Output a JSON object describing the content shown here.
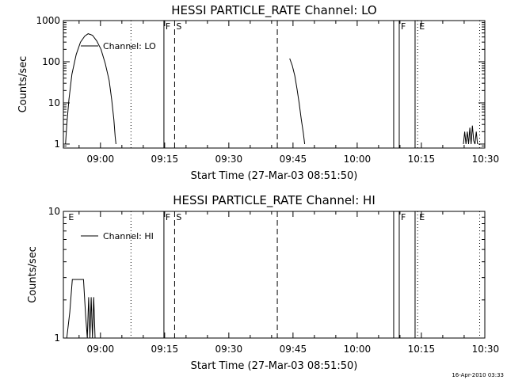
{
  "chart_data": [
    {
      "type": "line",
      "title": "HESSI PARTICLE_RATE Channel: LO",
      "xlabel": "Start Time (27-Mar-03 08:51:50)",
      "ylabel": "Counts/sec",
      "yscale": "log",
      "ylim": [
        0.8,
        1000
      ],
      "xlim_minutes": [
        -0.5,
        98
      ],
      "x_ticks": [
        {
          "t": 8.17,
          "label": "09:00"
        },
        {
          "t": 23.17,
          "label": "09:15"
        },
        {
          "t": 38.17,
          "label": "09:30"
        },
        {
          "t": 53.17,
          "label": "09:45"
        },
        {
          "t": 68.17,
          "label": "10:00"
        },
        {
          "t": 83.17,
          "label": "10:15"
        },
        {
          "t": 98.17,
          "label": "10:30"
        }
      ],
      "y_ticks": [
        {
          "v": 1,
          "label": "1"
        },
        {
          "v": 10,
          "label": "10"
        },
        {
          "v": 100,
          "label": "100"
        },
        {
          "v": 1000,
          "label": "1000"
        }
      ],
      "legend": {
        "position": "top-left",
        "entries": [
          "Channel: LO"
        ]
      },
      "series": [
        {
          "name": "Channel: LO",
          "segments": [
            [
              [
                0,
                1
              ],
              [
                0.3,
                3
              ],
              [
                0.8,
                12
              ],
              [
                1.5,
                50
              ],
              [
                2.5,
                150
              ],
              [
                3.5,
                300
              ],
              [
                4.5,
                420
              ],
              [
                5.3,
                480
              ],
              [
                6.3,
                440
              ],
              [
                7.3,
                320
              ],
              [
                8.3,
                200
              ],
              [
                9.3,
                90
              ],
              [
                10.2,
                35
              ],
              [
                10.8,
                12
              ],
              [
                11.3,
                4
              ],
              [
                11.6,
                1.5
              ],
              [
                11.8,
                1
              ]
            ],
            [
              [
                52.4,
                120
              ],
              [
                53,
                80
              ],
              [
                53.6,
                45
              ],
              [
                54.1,
                22
              ],
              [
                54.6,
                10
              ],
              [
                55.1,
                4
              ],
              [
                55.6,
                1.8
              ],
              [
                55.9,
                1
              ]
            ],
            [
              [
                93,
                1
              ],
              [
                93.3,
                2
              ],
              [
                93.6,
                1
              ],
              [
                93.9,
                2
              ],
              [
                94.2,
                1
              ],
              [
                94.5,
                2.5
              ],
              [
                94.8,
                1
              ],
              [
                95.1,
                2.8
              ],
              [
                95.4,
                1.2
              ],
              [
                95.7,
                1
              ],
              [
                96,
                2
              ],
              [
                96.3,
                1
              ]
            ]
          ]
        }
      ],
      "vlines": [
        {
          "t": 15.3,
          "style": "dotted",
          "label": ""
        },
        {
          "t": 23.0,
          "style": "solid",
          "label": "F"
        },
        {
          "t": 25.5,
          "style": "dashed",
          "label": "S"
        },
        {
          "t": 49.5,
          "style": "dashed",
          "label": ""
        },
        {
          "t": 76.7,
          "style": "solid",
          "label": ""
        },
        {
          "t": 78.0,
          "style": "solid",
          "label": "F"
        },
        {
          "t": 81.7,
          "style": "solid",
          "label": ""
        },
        {
          "t": 82.3,
          "style": "dotted",
          "label": "E"
        },
        {
          "t": 96.8,
          "style": "dotted",
          "label": ""
        }
      ]
    },
    {
      "type": "line",
      "title": "HESSI PARTICLE_RATE Channel: HI",
      "xlabel": "Start Time (27-Mar-03 08:51:50)",
      "ylabel": "Counts/sec",
      "yscale": "log",
      "ylim": [
        1,
        10
      ],
      "xlim_minutes": [
        -0.5,
        98
      ],
      "x_ticks": [
        {
          "t": 8.17,
          "label": "09:00"
        },
        {
          "t": 23.17,
          "label": "09:15"
        },
        {
          "t": 38.17,
          "label": "09:30"
        },
        {
          "t": 53.17,
          "label": "09:45"
        },
        {
          "t": 68.17,
          "label": "10:00"
        },
        {
          "t": 83.17,
          "label": "10:15"
        },
        {
          "t": 98.17,
          "label": "10:30"
        }
      ],
      "y_ticks": [
        {
          "v": 1,
          "label": "1"
        },
        {
          "v": 10,
          "label": "10"
        }
      ],
      "legend": {
        "position": "top-left",
        "entries": [
          "Channel: HI"
        ]
      },
      "series": [
        {
          "name": "Channel: HI",
          "segments": [
            [
              [
                0.3,
                1
              ],
              [
                1,
                1.6
              ],
              [
                1.6,
                2.9
              ],
              [
                4.2,
                2.9
              ],
              [
                4.7,
                1.5
              ],
              [
                5.1,
                1
              ],
              [
                5.4,
                2.1
              ],
              [
                5.7,
                1
              ],
              [
                6,
                2.1
              ],
              [
                6.3,
                1
              ],
              [
                6.6,
                2.1
              ],
              [
                6.9,
                1
              ]
            ]
          ]
        }
      ],
      "vlines": [
        {
          "t": 0.3,
          "style": "none",
          "label": "E"
        },
        {
          "t": 15.3,
          "style": "dotted",
          "label": ""
        },
        {
          "t": 23.0,
          "style": "solid",
          "label": "F"
        },
        {
          "t": 25.5,
          "style": "dashed",
          "label": "S"
        },
        {
          "t": 49.5,
          "style": "dashed",
          "label": ""
        },
        {
          "t": 76.7,
          "style": "solid",
          "label": ""
        },
        {
          "t": 78.0,
          "style": "solid",
          "label": "F"
        },
        {
          "t": 81.7,
          "style": "solid",
          "label": ""
        },
        {
          "t": 82.3,
          "style": "dotted",
          "label": "E"
        },
        {
          "t": 96.8,
          "style": "dotted",
          "label": ""
        }
      ]
    }
  ],
  "footer": {
    "timestamp": "16-Apr-2010 03:33"
  }
}
